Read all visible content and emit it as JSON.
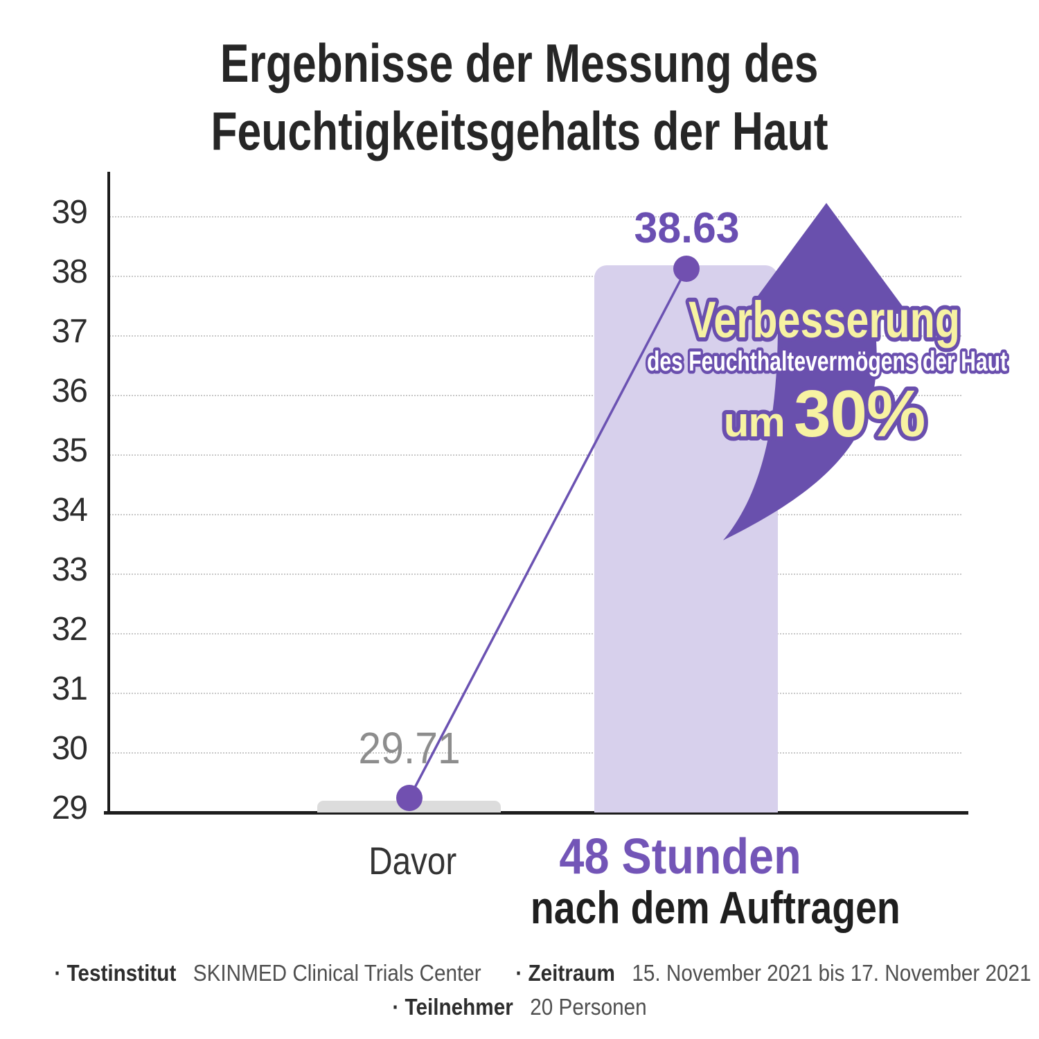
{
  "title": {
    "line1": "Ergebnisse der Messung des",
    "line2": "Feuchtigkeitsgehalts der Haut"
  },
  "chart_data": {
    "type": "bar",
    "title": "Ergebnisse der Messung des Feuchtigkeitsgehalts der Haut",
    "categories": [
      "Davor",
      "48 Stunden nach dem Auftragen"
    ],
    "values": [
      29.71,
      38.63
    ],
    "value_labels": [
      "29.71",
      "38.63"
    ],
    "ylim": [
      29,
      39
    ],
    "yticks": [
      29,
      30,
      31,
      32,
      33,
      34,
      35,
      36,
      37,
      38,
      39
    ],
    "grid": "horizontal dotted",
    "legend": "none",
    "bar_colors": [
      "#dcdcdc",
      "#d7d0ec"
    ],
    "overlay_series": "line with dots connecting the two bar tops",
    "annotation": "Verbesserung des Feuchthaltevermögens der Haut um 30%"
  },
  "point_labels": {
    "before": "29.71",
    "after": "38.63"
  },
  "x_axis": {
    "before": "Davor",
    "after_line1": "48 Stunden",
    "after_line2": "nach dem Auftragen"
  },
  "badge": {
    "line1": "Verbesserung",
    "line2": "des Feuchthaltevermögens der Haut",
    "prefix": "um",
    "percent": "30%"
  },
  "footer": {
    "line1": [
      {
        "label": "· Testinstitut",
        "value": "SKINMED Clinical Trials Center"
      },
      {
        "label": "· Zeitraum",
        "value": "15. November 2021 bis 17. November 2021"
      }
    ],
    "line2": [
      {
        "label": "· Teilnehmer",
        "value": "20 Personen"
      }
    ]
  },
  "colors": {
    "accent_purple": "#6a4fae",
    "arrow_purple": "#6950ad",
    "bar_light_purple": "#d7d0ec",
    "bar_gray": "#dcdcdc",
    "dot_purple": "#7150b0",
    "value_before_gray": "#8d8d8d",
    "value_after_purple": "#6a4fb2",
    "x_label_purple": "#7355b7",
    "annotation_yellow": "#f7f2a2",
    "annotation_white": "#ffffff",
    "text_dark": "#262626",
    "grid_gray": "#c7c7c7"
  }
}
